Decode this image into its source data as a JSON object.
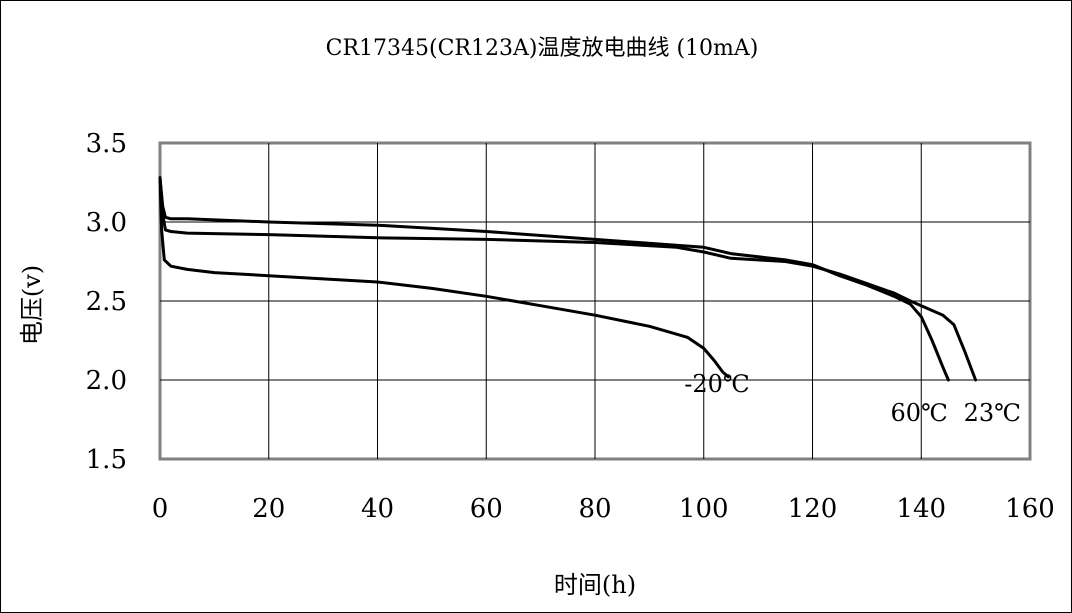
{
  "chart_data": {
    "type": "line",
    "title": "CR17345(CR123A)温度放电曲线 (10mA)",
    "xlabel": "时间(h)",
    "ylabel": "电压(v)",
    "xlim": [
      0,
      160
    ],
    "ylim": [
      1.5,
      3.5
    ],
    "xticks": [
      "0",
      "20",
      "40",
      "60",
      "80",
      "100",
      "120",
      "140",
      "160"
    ],
    "yticks": [
      "1.5",
      "2.0",
      "2.5",
      "3.0",
      "3.5"
    ],
    "grid": true,
    "legend": "none",
    "series": [
      {
        "name": "-20℃",
        "x": [
          0,
          0.3,
          0.8,
          2,
          5,
          10,
          20,
          30,
          40,
          50,
          60,
          70,
          80,
          90,
          97,
          100,
          102,
          103.5,
          104.5
        ],
        "y": [
          3.28,
          2.95,
          2.76,
          2.72,
          2.7,
          2.68,
          2.66,
          2.64,
          2.62,
          2.58,
          2.53,
          2.47,
          2.41,
          2.34,
          2.27,
          2.2,
          2.12,
          2.05,
          2.02
        ]
      },
      {
        "name": "60℃",
        "x": [
          0,
          0.5,
          1,
          2,
          5,
          20,
          40,
          60,
          80,
          100,
          105,
          115,
          120,
          125,
          130,
          135,
          138,
          140,
          142,
          144,
          145
        ],
        "y": [
          3.28,
          3.1,
          3.03,
          3.02,
          3.02,
          3.0,
          2.98,
          2.94,
          2.89,
          2.84,
          2.8,
          2.76,
          2.73,
          2.66,
          2.6,
          2.53,
          2.48,
          2.4,
          2.25,
          2.08,
          2.0
        ]
      },
      {
        "name": "23℃",
        "x": [
          0,
          0.5,
          1,
          2,
          5,
          20,
          40,
          60,
          80,
          95,
          100,
          105,
          110,
          115,
          120,
          125,
          130,
          135,
          138,
          142,
          144,
          146,
          148,
          150
        ],
        "y": [
          3.28,
          3.05,
          2.95,
          2.94,
          2.93,
          2.92,
          2.9,
          2.89,
          2.87,
          2.84,
          2.81,
          2.77,
          2.76,
          2.75,
          2.72,
          2.67,
          2.61,
          2.55,
          2.5,
          2.44,
          2.41,
          2.35,
          2.18,
          2.0
        ]
      }
    ]
  }
}
